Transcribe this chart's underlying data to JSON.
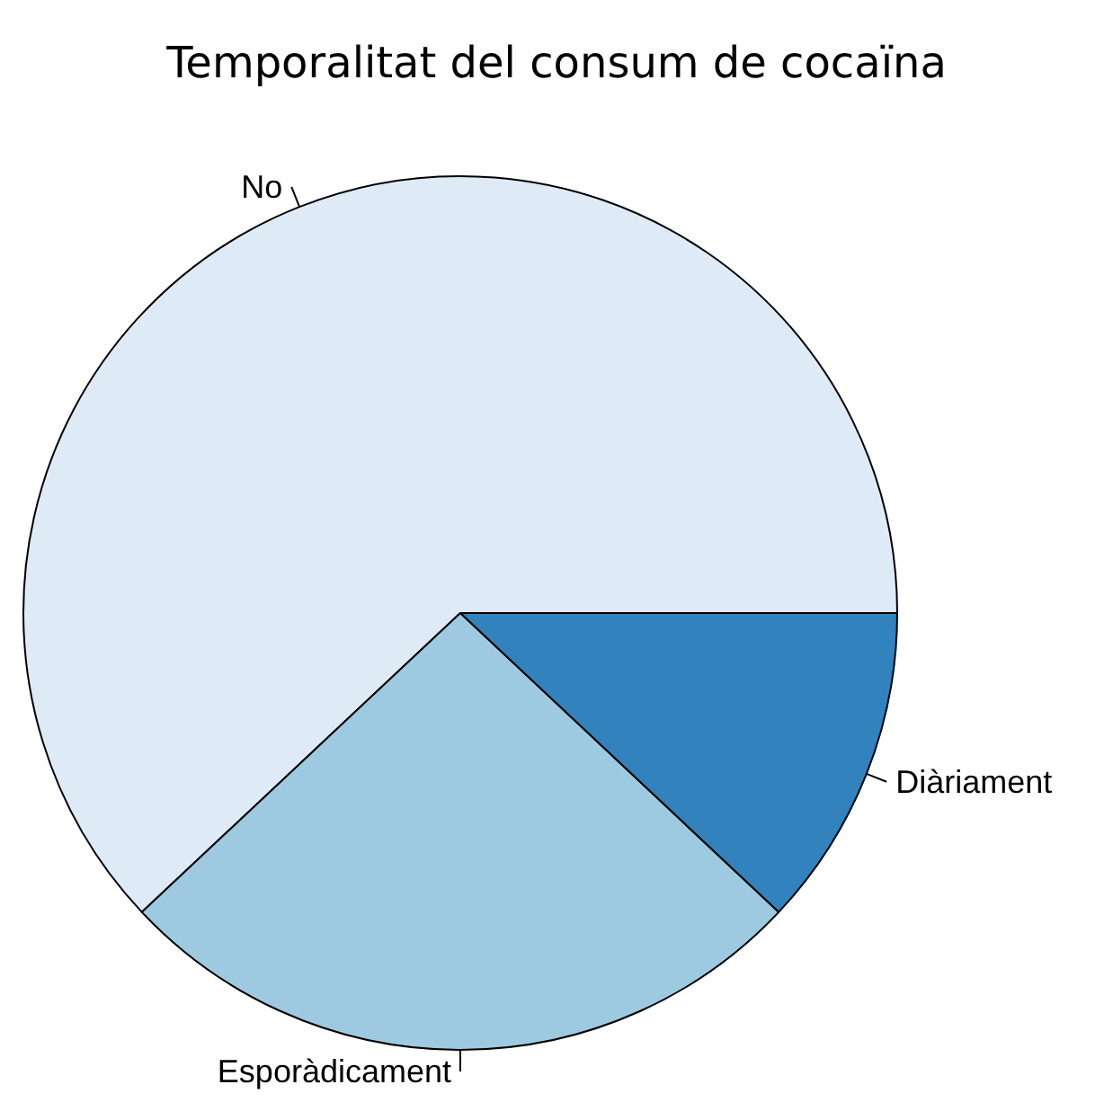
{
  "chart_data": {
    "type": "pie",
    "title": "Temporalitat del consum de cocaïna",
    "categories": [
      "No",
      "Esporàdicament",
      "Diàriament"
    ],
    "values": [
      62,
      26,
      12
    ],
    "colors": [
      "#deebf7",
      "#9ecae1",
      "#3182bd"
    ],
    "legend": false
  }
}
